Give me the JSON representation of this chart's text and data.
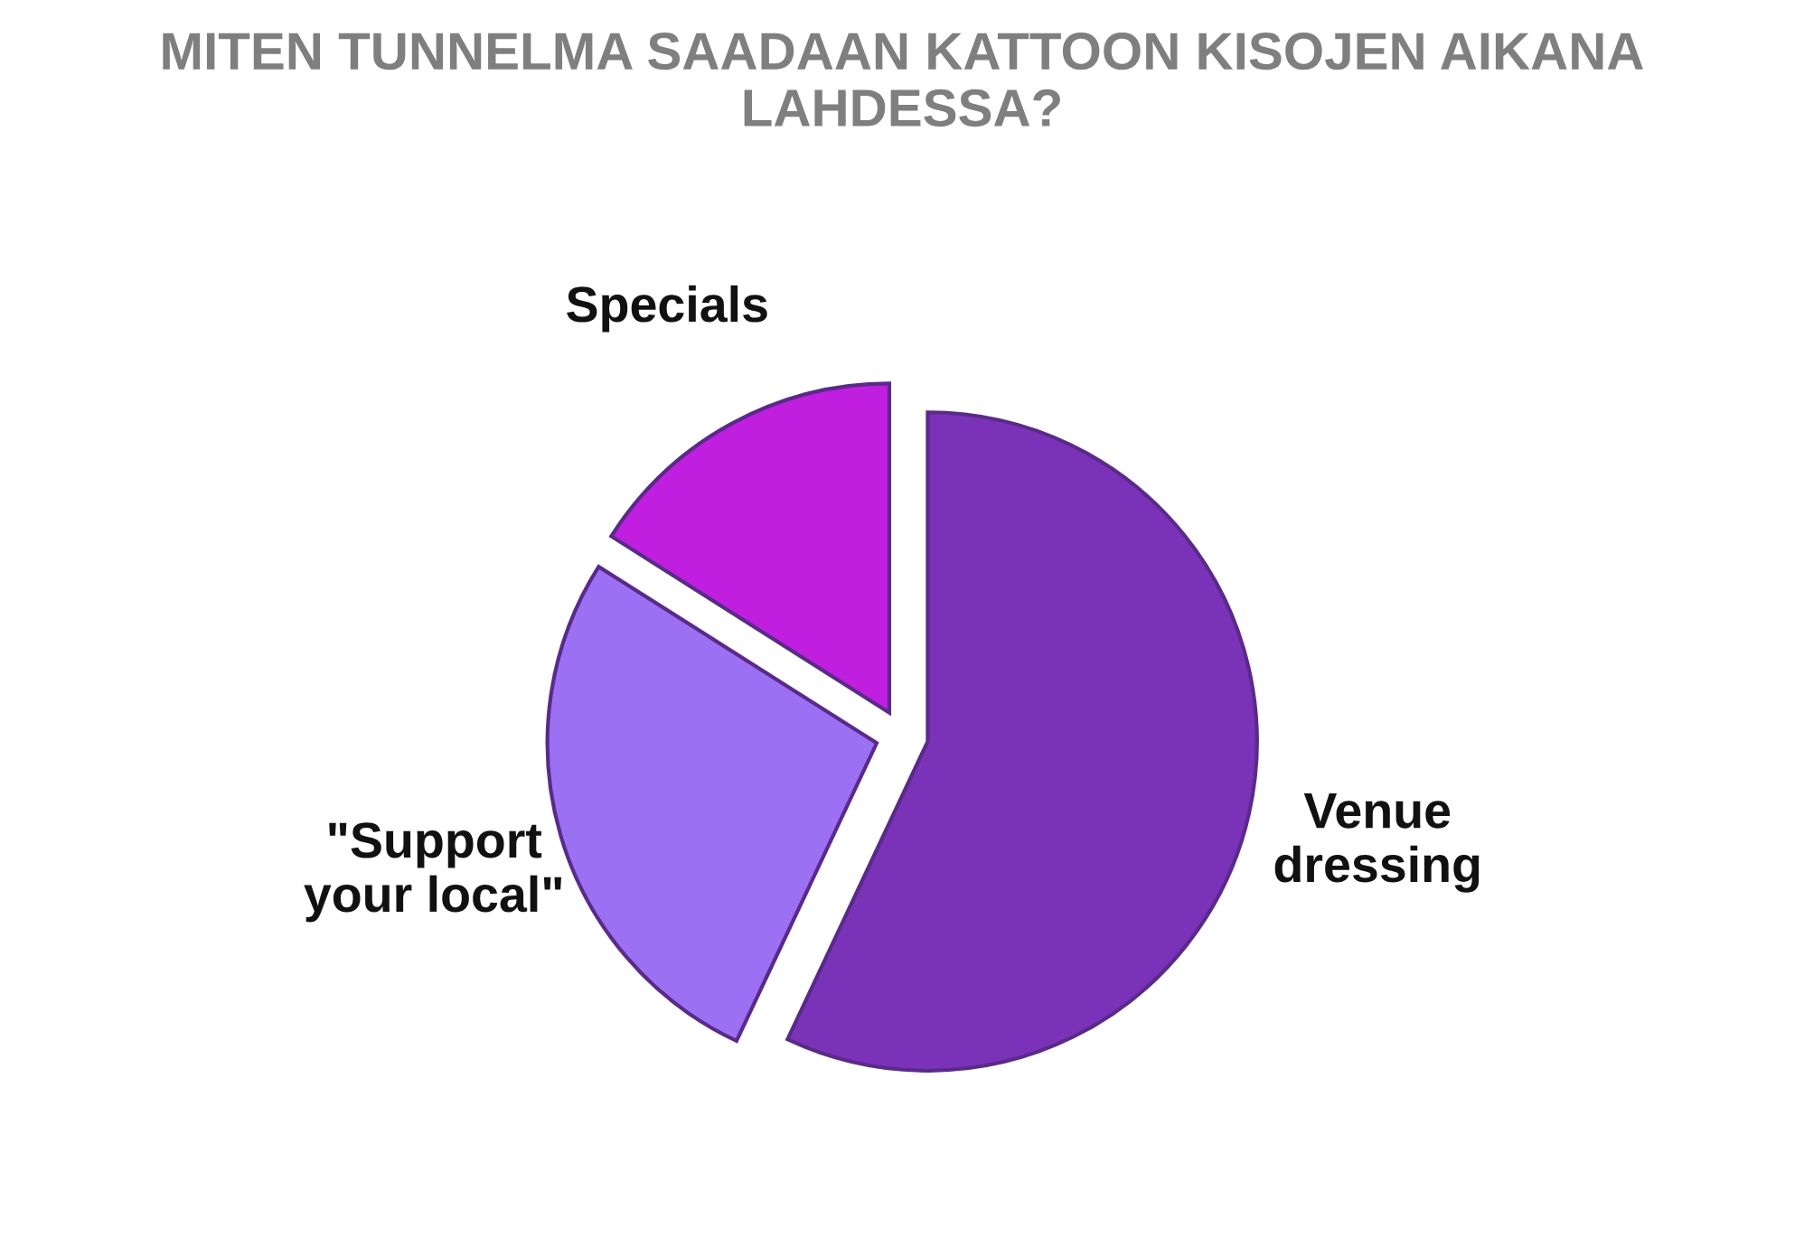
{
  "chart_data": {
    "type": "pie",
    "title": "MITEN TUNNELMA SAADAAN KATTOON KISOJEN AIKANA LAHDESSA?",
    "categories": [
      "Venue dressing",
      "\"Support your local\"",
      "Specials"
    ],
    "values": [
      57,
      27,
      16
    ],
    "colors": [
      "#7a33b8",
      "#9c70f2",
      "#c01fe0"
    ],
    "legend": false
  }
}
